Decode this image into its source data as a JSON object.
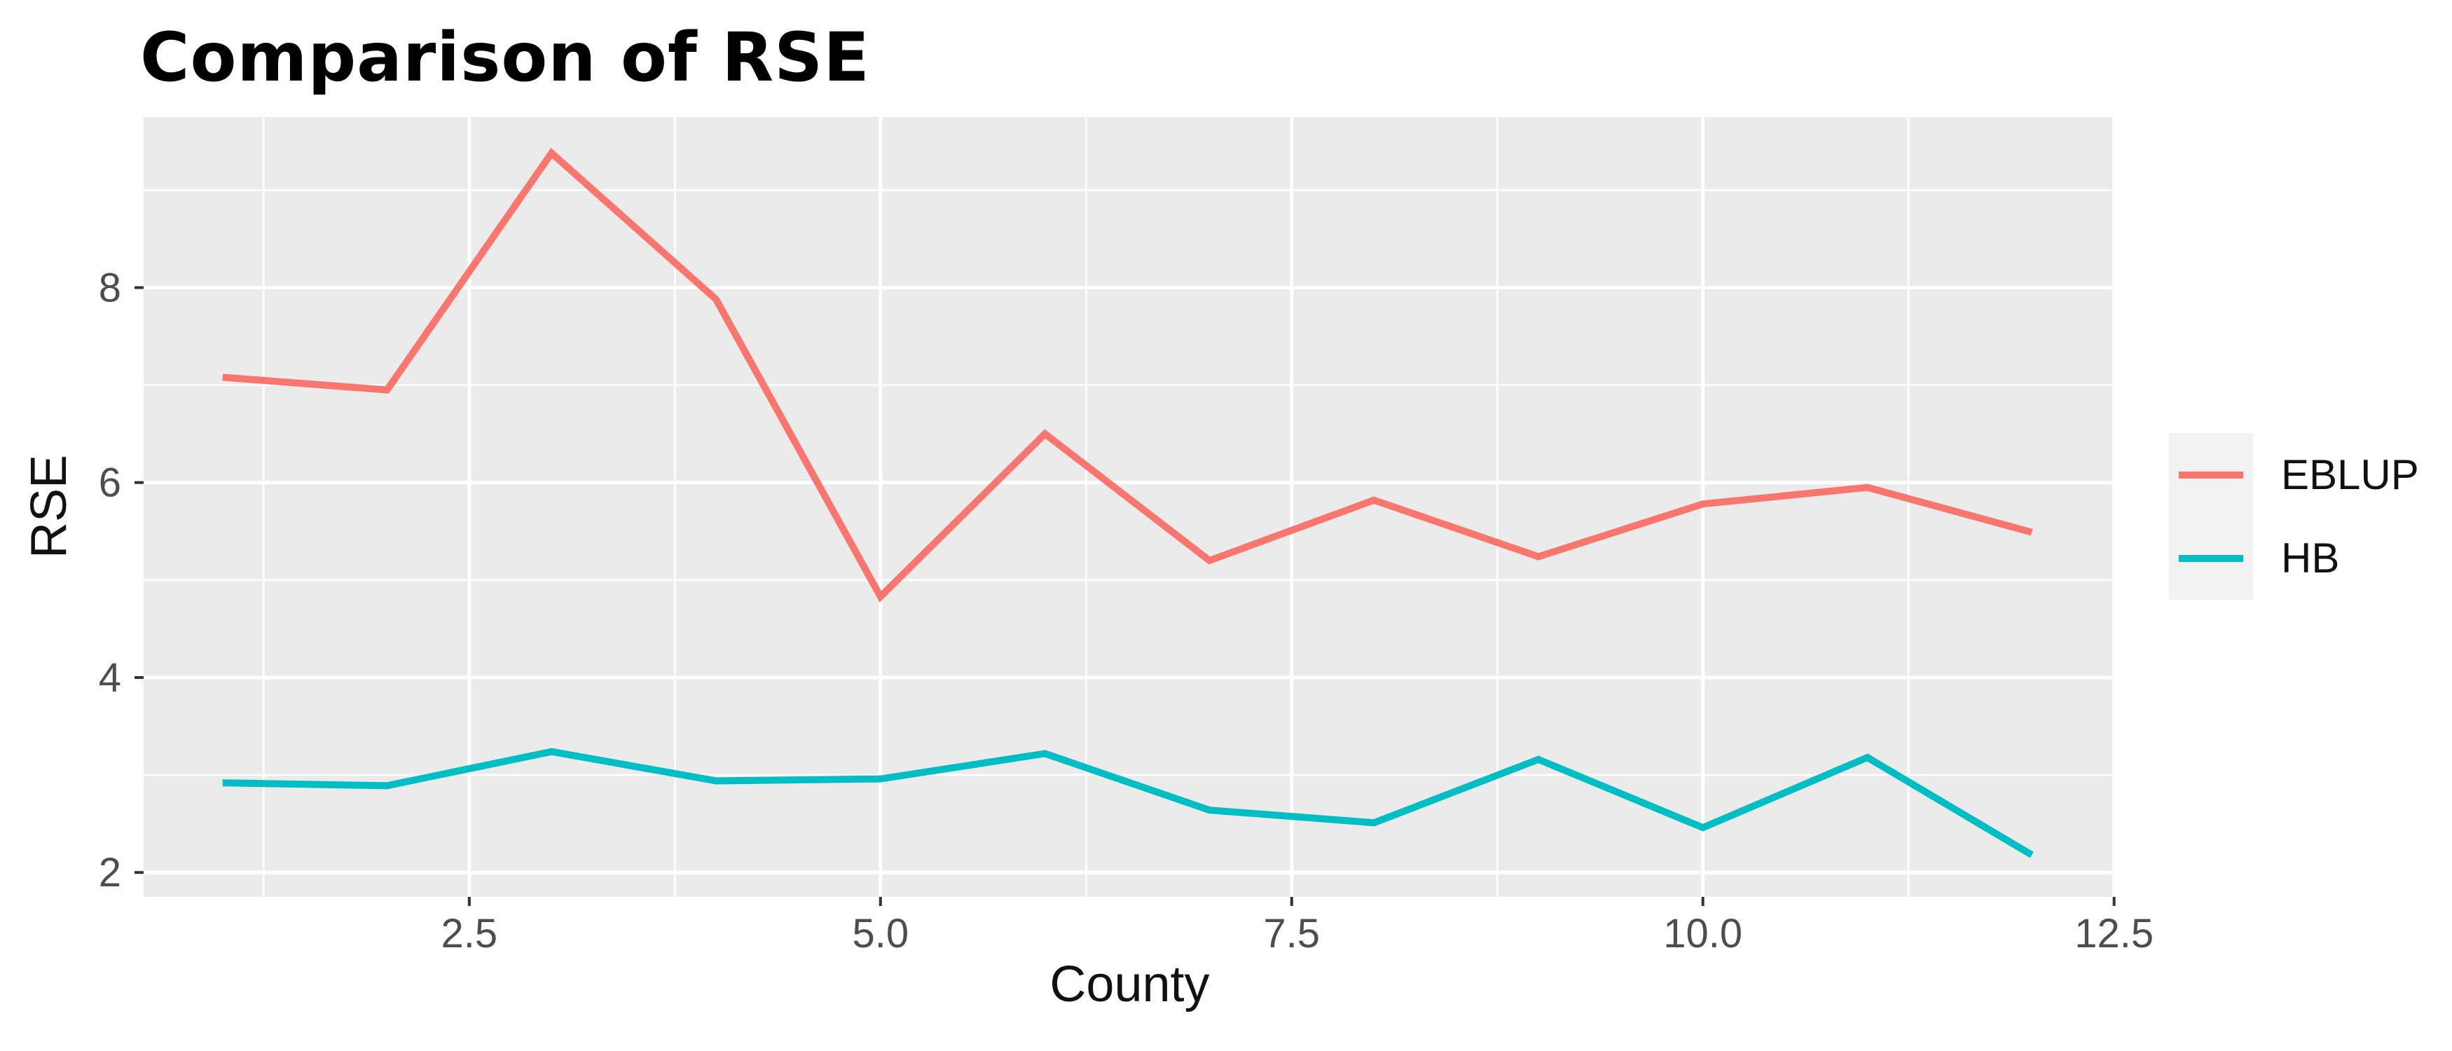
{
  "page": {
    "background": "#FFFFFF"
  },
  "chart_data": {
    "type": "line",
    "title": "Comparison of RSE",
    "xlabel": "County",
    "ylabel": "RSE",
    "x": [
      1,
      2,
      3,
      4,
      5,
      6,
      7,
      8,
      9,
      10,
      11,
      12
    ],
    "series": [
      {
        "name": "EBLUP",
        "color": "#F8766D",
        "values": [
          7.08,
          6.95,
          9.38,
          7.88,
          4.83,
          6.5,
          5.2,
          5.82,
          5.24,
          5.78,
          5.95,
          5.49
        ]
      },
      {
        "name": "HB",
        "color": "#00BEC4",
        "values": [
          2.92,
          2.89,
          3.24,
          2.94,
          2.96,
          3.22,
          2.64,
          2.51,
          3.16,
          2.46,
          3.18,
          2.18
        ]
      }
    ],
    "x_ticks": {
      "values": [
        2.5,
        5,
        7.5,
        10,
        12.5
      ],
      "labels": [
        "2.5",
        "5.0",
        "7.5",
        "10.0",
        "12.5"
      ]
    },
    "y_ticks": {
      "values": [
        2,
        4,
        6,
        8
      ],
      "labels": [
        "2",
        "4",
        "6",
        "8"
      ]
    },
    "x_minor": [
      1.25,
      3.75,
      6.25,
      8.75,
      11.25
    ],
    "y_minor": [
      3,
      5,
      7,
      9
    ],
    "xlim": [
      0.52,
      12.51
    ],
    "ylim": [
      1.75,
      9.75
    ],
    "grid": true,
    "legend_position": "right",
    "colors": {
      "panel_bg": "#EBEBEB",
      "grid": "#FFFFFF",
      "tick_text": "#4D4D4D",
      "tick_mark": "#333333",
      "text": "#000000",
      "legend_key_bg": "#F2F2F2"
    }
  }
}
